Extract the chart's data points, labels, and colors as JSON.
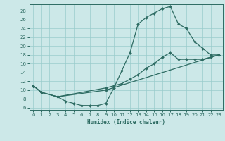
{
  "xlabel": "Humidex (Indice chaleur)",
  "bg_color": "#cce8e8",
  "grid_color": "#99cccc",
  "line_color": "#2d6b62",
  "xlim": [
    -0.5,
    23.5
  ],
  "ylim": [
    5.5,
    29.5
  ],
  "xticks": [
    0,
    1,
    2,
    3,
    4,
    5,
    6,
    7,
    8,
    9,
    10,
    11,
    12,
    13,
    14,
    15,
    16,
    17,
    18,
    19,
    20,
    21,
    22,
    23
  ],
  "yticks": [
    6,
    8,
    10,
    12,
    14,
    16,
    18,
    20,
    22,
    24,
    26,
    28
  ],
  "line1_x": [
    0,
    1,
    3,
    4,
    5,
    6,
    7,
    8,
    9,
    10,
    11,
    12,
    13,
    14,
    15,
    16,
    17,
    18,
    19,
    20,
    21,
    22,
    23
  ],
  "line1_y": [
    11,
    9.5,
    8.5,
    7.5,
    7,
    6.5,
    6.5,
    6.5,
    7,
    10.5,
    14.5,
    18.5,
    25,
    26.5,
    27.5,
    28.5,
    29,
    25,
    24,
    21,
    19.5,
    18,
    18
  ],
  "line2_x": [
    0,
    1,
    3,
    9,
    10,
    11,
    12,
    13,
    14,
    15,
    16,
    17,
    18,
    19,
    20,
    21,
    22,
    23
  ],
  "line2_y": [
    11,
    9.5,
    8.5,
    10.5,
    11,
    11.5,
    12.5,
    13.5,
    15,
    16,
    17.5,
    18.5,
    17,
    17,
    17,
    17,
    17.5,
    18
  ],
  "line3_x": [
    0,
    1,
    3,
    9,
    23
  ],
  "line3_y": [
    11,
    9.5,
    8.5,
    10,
    18
  ]
}
